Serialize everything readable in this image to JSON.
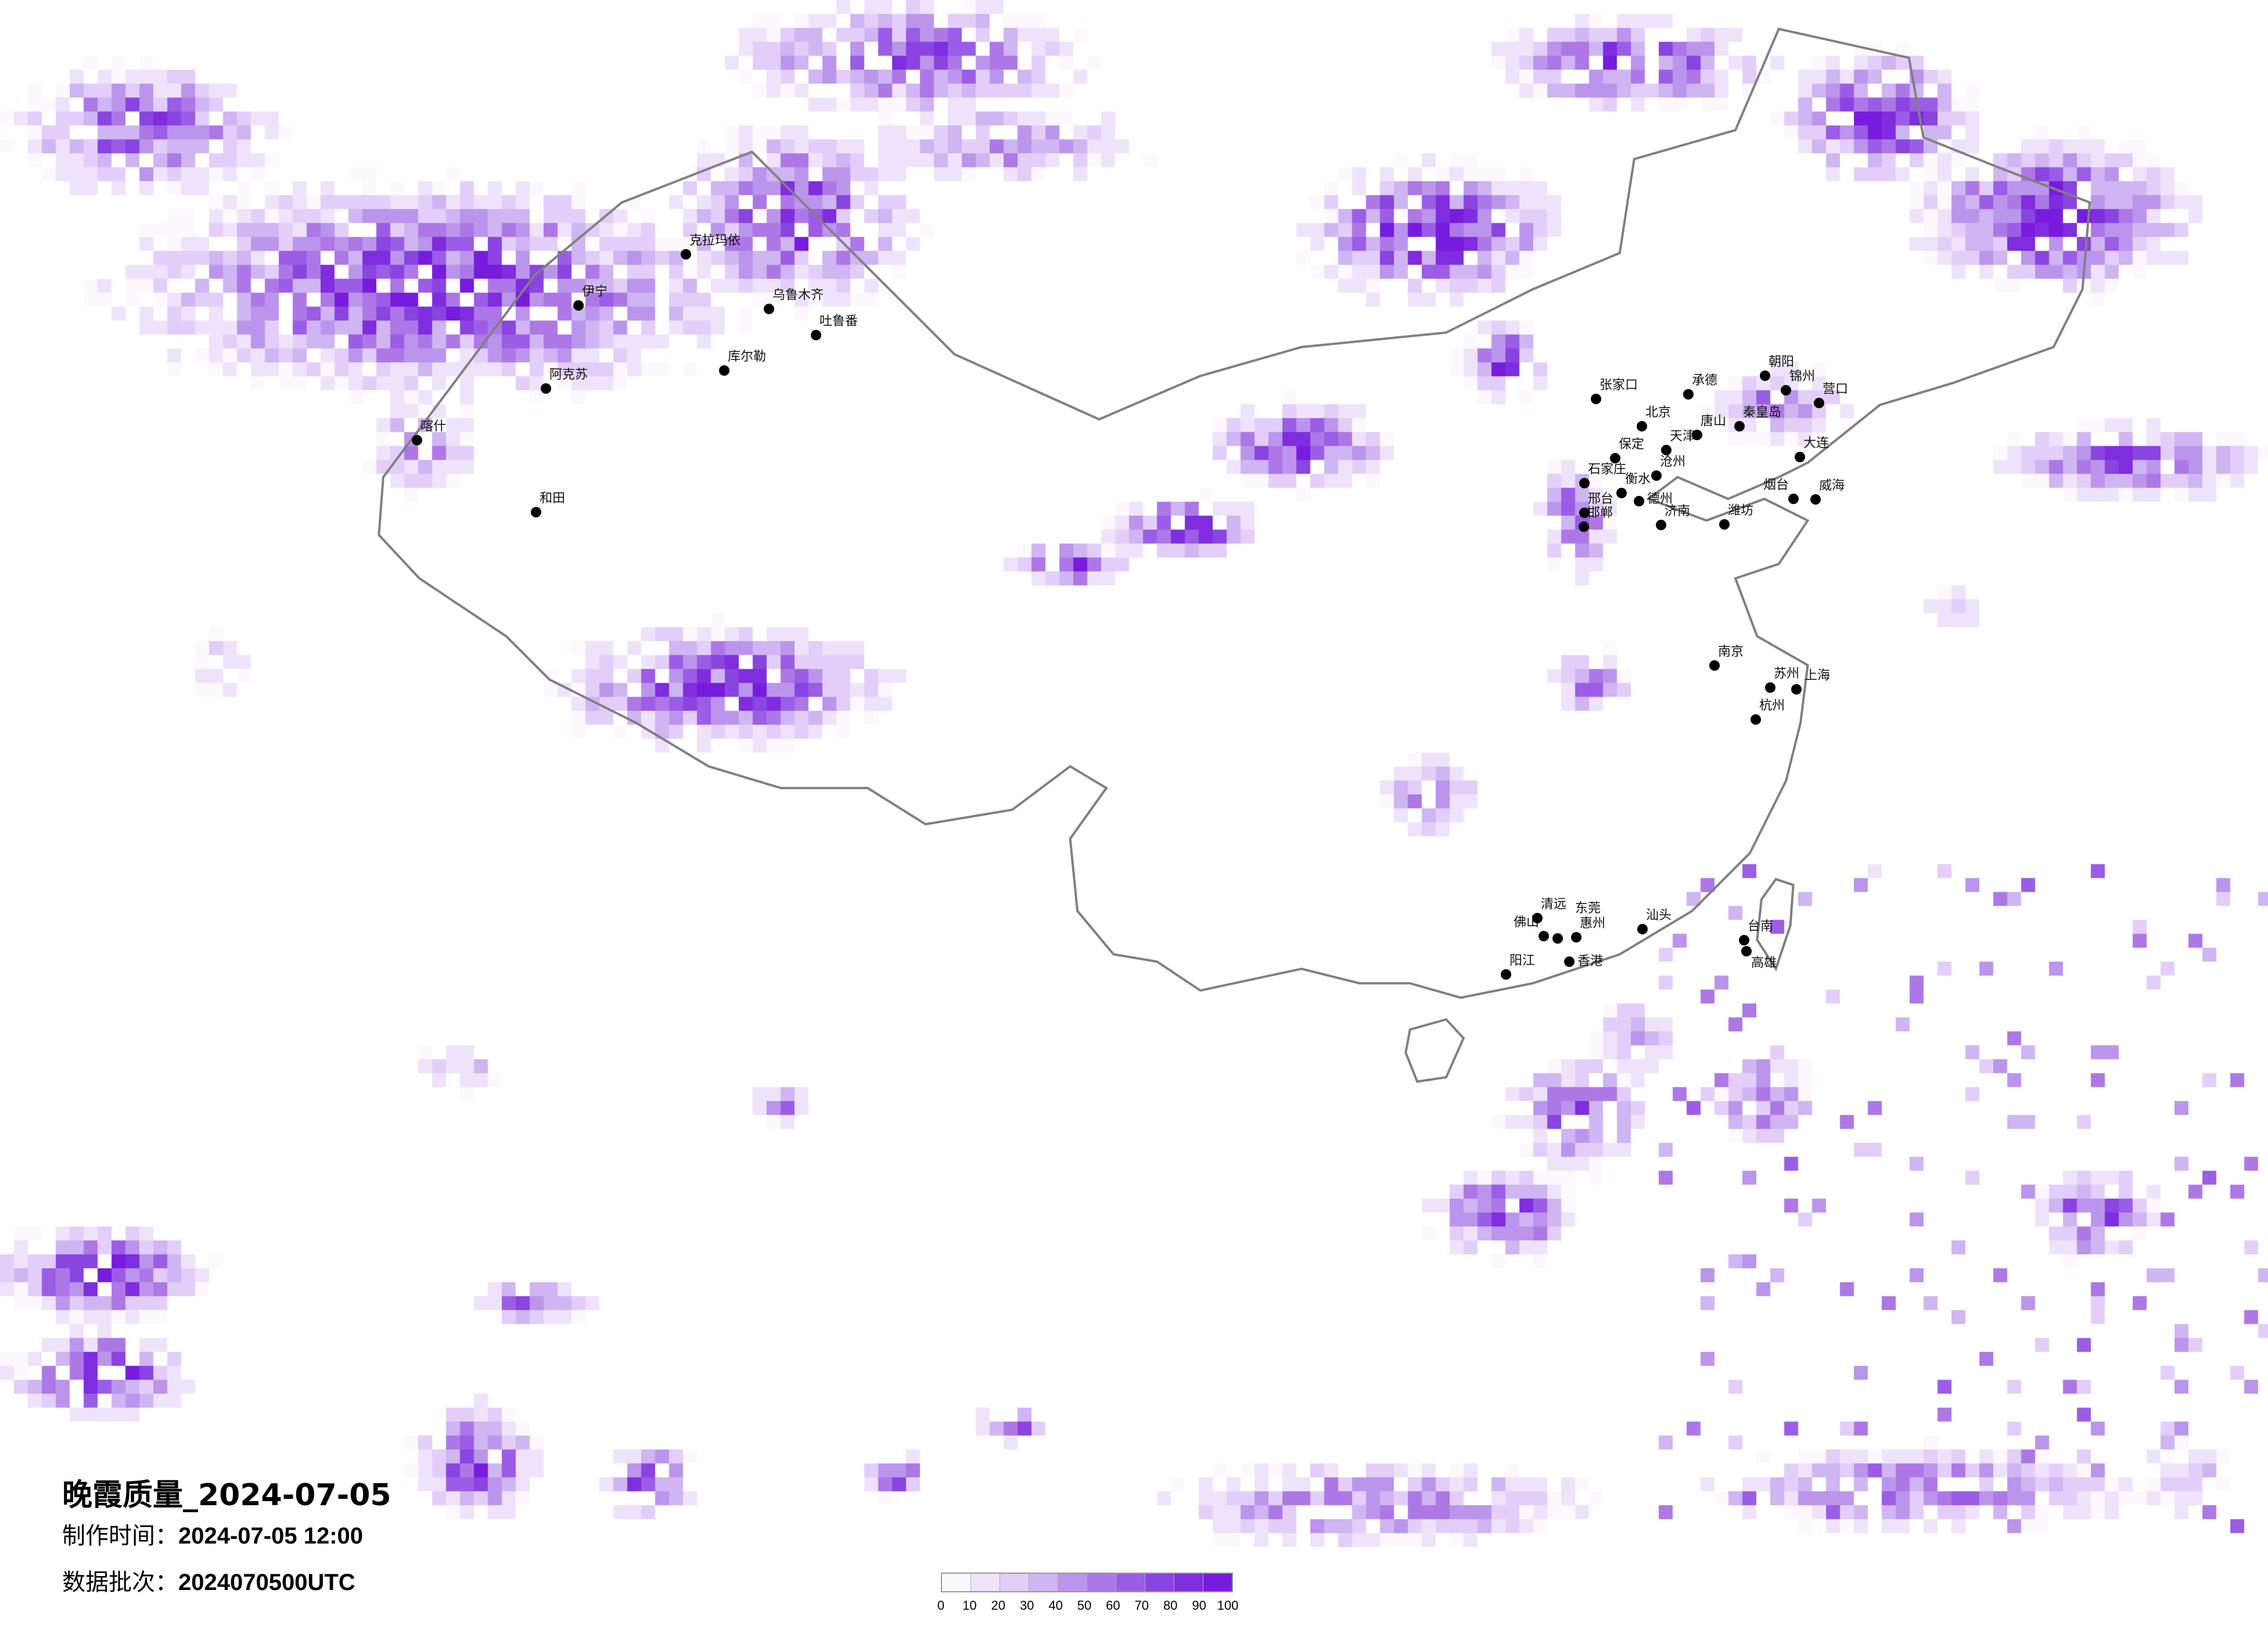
{
  "title": "晚霞质量_2024-07-05",
  "made_time": {
    "label": "制作时间：",
    "value": "2024-07-05 12:00"
  },
  "data_batch": {
    "label": "数据批次：",
    "value": "2024070500UTC"
  },
  "legend": {
    "ticks": [
      "0",
      "10",
      "20",
      "30",
      "40",
      "50",
      "60",
      "70",
      "80",
      "90",
      "100"
    ],
    "colors": [
      "#fdf8fe",
      "#efe3fb",
      "#e3cefa",
      "#cfb5f2",
      "#bb95ec",
      "#ad78e6",
      "#9c5de6",
      "#8a44e0",
      "#7f2ddf",
      "#771cdd"
    ]
  },
  "border_color": "#808080",
  "cities": [
    "北京",
    "天津",
    "保定",
    "石家庄",
    "张家口",
    "唐山",
    "秦皇岛",
    "大连",
    "济南",
    "烟台",
    "威海",
    "承德",
    "沧州",
    "锦州",
    "营口",
    "朝阳",
    "邯郸",
    "邢台",
    "衡水",
    "德州",
    "潍坊",
    "佛山",
    "东莞",
    "惠州",
    "香港",
    "汕头",
    "台南",
    "高雄",
    "清远",
    "阳江",
    "上海",
    "南京",
    "杭州",
    "苏州",
    "伊宁",
    "乌鲁木齐",
    "阿克苏",
    "喀什",
    "和田",
    "库尔勒",
    "吐鲁番",
    "克拉玛依"
  ]
}
